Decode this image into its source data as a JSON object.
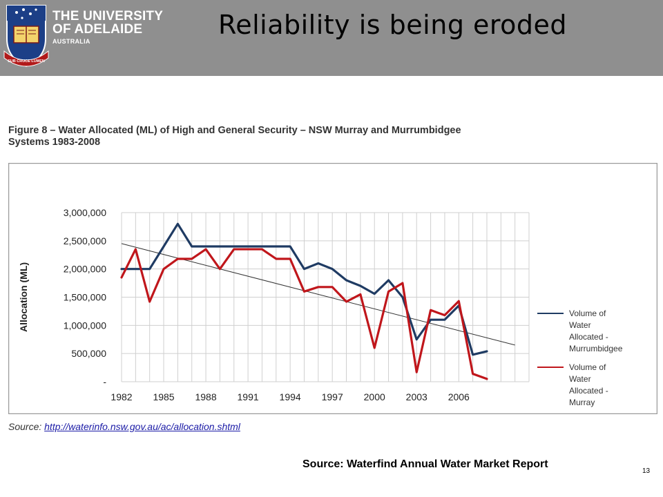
{
  "header": {
    "university_line1": "THE UNIVERSITY",
    "university_line2": "OF ADELAIDE",
    "university_line3": "AUSTRALIA",
    "motto": "SUB CRUCE LUMEN",
    "slide_title": "Reliability is being eroded",
    "background_color": "#8f8f8f"
  },
  "figure_caption_line1": "Figure 8 – Water Allocated (ML) of High and General Security – NSW Murray and Murrumbidgee",
  "figure_caption_line2": "Systems 1983-2008",
  "source_inline": {
    "label": "Source:",
    "link": "http://waterinfo.nsw.gov.au/ac/allocation.shtml"
  },
  "footer_source": "Source:  Waterfind Annual Water Market Report",
  "page_number": "13",
  "chart_data": {
    "type": "line",
    "ylabel": "Allocation (ML)",
    "xlabel": "",
    "xlim": [
      1982,
      2011
    ],
    "ylim": [
      0,
      3000000
    ],
    "grid": true,
    "legend_position": "right",
    "x_tick_labels": [
      "1982",
      "1985",
      "1988",
      "1991",
      "1994",
      "1997",
      "2000",
      "2003",
      "2006"
    ],
    "x_tick_values": [
      1982,
      1985,
      1988,
      1991,
      1994,
      1997,
      2000,
      2003,
      2006
    ],
    "y_tick_labels": [
      "-",
      "500,000",
      "1,000,000",
      "1,500,000",
      "2,000,000",
      "2,500,000",
      "3,000,000"
    ],
    "y_tick_values": [
      0,
      500000,
      1000000,
      1500000,
      2000000,
      2500000,
      3000000
    ],
    "series": [
      {
        "name": "Volume of Water Allocated - Murrumbidgee",
        "legend_lines": [
          "Volume of",
          "Water",
          "Allocated -",
          "Murrumbidgee"
        ],
        "color": "#1f3b63",
        "x": [
          1982,
          1983,
          1984,
          1985,
          1986,
          1987,
          1988,
          1989,
          1990,
          1991,
          1992,
          1993,
          1994,
          1995,
          1996,
          1997,
          1998,
          1999,
          2000,
          2001,
          2002,
          2003,
          2004,
          2005,
          2006,
          2007,
          2008
        ],
        "values": [
          2000000,
          2000000,
          2000000,
          2400000,
          2800000,
          2400000,
          2400000,
          2400000,
          2400000,
          2400000,
          2400000,
          2400000,
          2400000,
          2000000,
          2100000,
          2000000,
          1800000,
          1700000,
          1560000,
          1800000,
          1500000,
          750000,
          1100000,
          1100000,
          1350000,
          480000,
          540000
        ]
      },
      {
        "name": "Volume of Water Allocated - Murray",
        "legend_lines": [
          "Volume of",
          "Water",
          "Allocated -",
          "Murray"
        ],
        "color": "#c0161b",
        "x": [
          1982,
          1983,
          1984,
          1985,
          1986,
          1987,
          1988,
          1989,
          1990,
          1991,
          1992,
          1993,
          1994,
          1995,
          1996,
          1997,
          1998,
          1999,
          2000,
          2001,
          2002,
          2003,
          2004,
          2005,
          2006,
          2007,
          2008
        ],
        "values": [
          1850000,
          2350000,
          1420000,
          2000000,
          2180000,
          2180000,
          2350000,
          2000000,
          2350000,
          2350000,
          2350000,
          2180000,
          2180000,
          1600000,
          1680000,
          1680000,
          1420000,
          1550000,
          600000,
          1600000,
          1750000,
          170000,
          1270000,
          1180000,
          1430000,
          140000,
          50000
        ]
      }
    ],
    "trendline": {
      "color": "#333333",
      "x": [
        1982,
        2010
      ],
      "values": [
        2450000,
        650000
      ]
    }
  }
}
